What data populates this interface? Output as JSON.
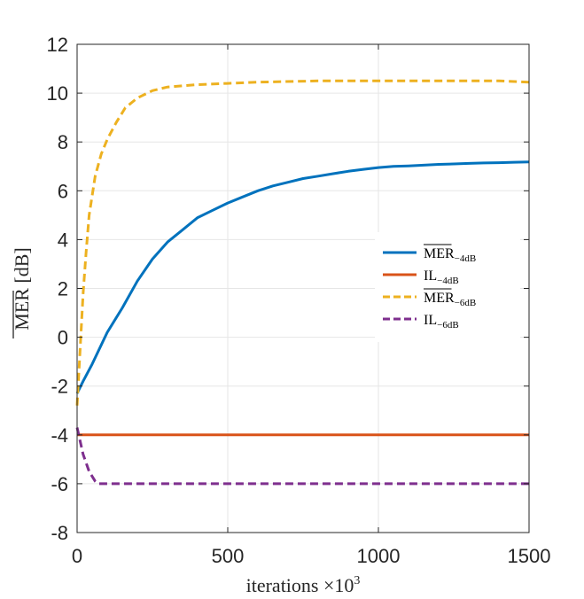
{
  "chart_data": {
    "type": "line",
    "xlabel": "iterations ×10",
    "xlabel_sup": "3",
    "ylabel": "MER [dB]",
    "xlim": [
      0,
      1500
    ],
    "ylim": [
      -8,
      12
    ],
    "xticks": [
      0,
      500,
      1000,
      1500
    ],
    "yticks": [
      -8,
      -6,
      -4,
      -2,
      0,
      2,
      4,
      6,
      8,
      10,
      12
    ],
    "grid": true,
    "legend_position": "center-right",
    "series": [
      {
        "name": "MER",
        "sub": "−4dB",
        "overline": true,
        "color": "#0072BD",
        "dash": "solid",
        "x": [
          0,
          20,
          50,
          100,
          150,
          200,
          250,
          300,
          350,
          400,
          450,
          500,
          550,
          600,
          650,
          700,
          750,
          800,
          850,
          900,
          950,
          1000,
          1050,
          1100,
          1150,
          1200,
          1250,
          1300,
          1350,
          1400,
          1450,
          1500
        ],
        "y": [
          -2.3,
          -1.8,
          -1.1,
          0.2,
          1.2,
          2.3,
          3.2,
          3.9,
          4.4,
          4.9,
          5.2,
          5.5,
          5.75,
          6.0,
          6.2,
          6.35,
          6.5,
          6.6,
          6.7,
          6.8,
          6.88,
          6.95,
          7.0,
          7.02,
          7.05,
          7.08,
          7.1,
          7.12,
          7.14,
          7.15,
          7.17,
          7.18
        ]
      },
      {
        "name": "IL",
        "sub": "−4dB",
        "overline": false,
        "color": "#D95319",
        "dash": "solid",
        "x": [
          0,
          1500
        ],
        "y": [
          -4,
          -4
        ]
      },
      {
        "name": "MER",
        "sub": "−6dB",
        "overline": true,
        "color": "#EDB120",
        "dash": "dashed",
        "x": [
          0,
          10,
          20,
          30,
          40,
          50,
          60,
          80,
          100,
          130,
          160,
          200,
          250,
          300,
          350,
          400,
          500,
          600,
          800,
          1000,
          1200,
          1400,
          1500
        ],
        "y": [
          -2.8,
          -0.5,
          1.8,
          3.5,
          5.0,
          5.8,
          6.6,
          7.5,
          8.1,
          8.8,
          9.4,
          9.8,
          10.1,
          10.25,
          10.3,
          10.35,
          10.4,
          10.45,
          10.5,
          10.5,
          10.5,
          10.5,
          10.45
        ]
      },
      {
        "name": "IL",
        "sub": "−6dB",
        "overline": false,
        "color": "#7E2F8E",
        "dash": "dashed",
        "x": [
          0,
          20,
          40,
          60,
          70,
          80,
          1500
        ],
        "y": [
          -3.7,
          -4.8,
          -5.5,
          -5.9,
          -6.0,
          -6.0,
          -6.0
        ]
      }
    ]
  }
}
